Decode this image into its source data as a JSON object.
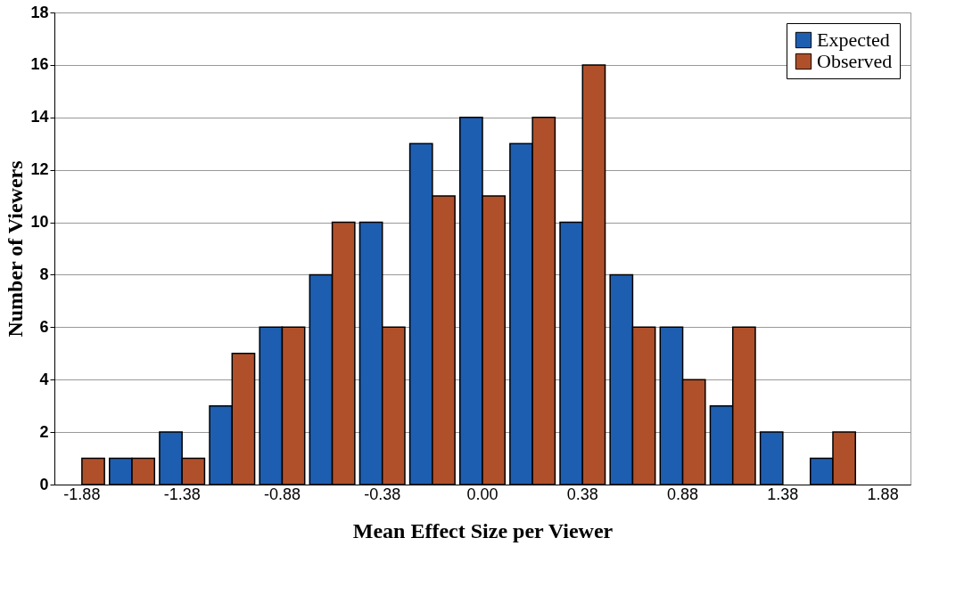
{
  "chart_data": {
    "type": "bar",
    "xlabel": "Mean Effect Size per Viewer",
    "ylabel": "Number of Viewers",
    "categories": [
      "-1.88",
      null,
      "-1.38",
      null,
      "-0.88",
      null,
      "-0.38",
      null,
      "0.00",
      null,
      "0.38",
      null,
      "0.88",
      null,
      "1.38",
      null,
      "1.88"
    ],
    "series": [
      {
        "name": "Expected",
        "color": "#1e5eb0",
        "values": [
          null,
          1,
          2,
          3,
          6,
          8,
          10,
          13,
          14,
          13,
          10,
          8,
          6,
          3,
          2,
          1,
          null
        ]
      },
      {
        "name": "Observed",
        "color": "#b0502a",
        "values": [
          1,
          1,
          1,
          5,
          6,
          10,
          6,
          11,
          11,
          14,
          16,
          6,
          4,
          6,
          null,
          2,
          null
        ]
      }
    ],
    "ylim": [
      0,
      18
    ],
    "yticks": [
      0,
      2,
      4,
      6,
      8,
      10,
      12,
      14,
      16,
      18
    ],
    "grid": "y",
    "legend": "top right"
  }
}
